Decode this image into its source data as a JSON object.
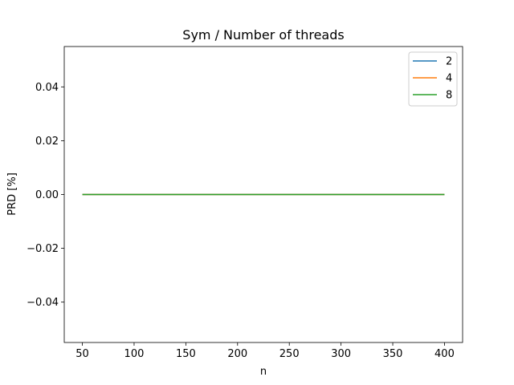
{
  "chart_data": {
    "type": "line",
    "title": "Sym / Number of threads",
    "xlabel": "n",
    "ylabel": "PRD [%]",
    "xlim": [
      32.5,
      417.5
    ],
    "ylim": [
      -0.055,
      0.055
    ],
    "xticks": [
      50,
      100,
      150,
      200,
      250,
      300,
      350,
      400
    ],
    "yticks": [
      -0.04,
      -0.02,
      0.0,
      0.02,
      0.04
    ],
    "ytick_labels": [
      "−0.04",
      "−0.02",
      "0.00",
      "0.02",
      "0.04"
    ],
    "grid": false,
    "legend_position": "top-right",
    "x": [
      50,
      100,
      150,
      200,
      250,
      300,
      350,
      400
    ],
    "series": [
      {
        "name": "2",
        "color": "#1f77b4",
        "values": [
          0,
          0,
          0,
          0,
          0,
          0,
          0,
          0
        ]
      },
      {
        "name": "4",
        "color": "#ff7f0e",
        "values": [
          0,
          0,
          0,
          0,
          0,
          0,
          0,
          0
        ]
      },
      {
        "name": "8",
        "color": "#2ca02c",
        "values": [
          0,
          0,
          0,
          0,
          0,
          0,
          0,
          0
        ]
      }
    ]
  }
}
